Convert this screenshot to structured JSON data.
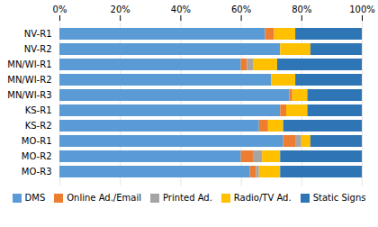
{
  "chart_data": {
    "type": "bar",
    "orientation": "horizontal",
    "stacked": true,
    "categories": [
      "NV-R1",
      "NV-R2",
      "MN/WI-R1",
      "MN/WI-R2",
      "MN/WI-R3",
      "KS-R1",
      "KS-R2",
      "MO-R1",
      "MO-R2",
      "MO-R3"
    ],
    "series": [
      {
        "name": "DMS",
        "color": "#5B9BD5",
        "values": [
          68,
          73,
          60,
          70,
          76,
          73,
          66,
          74,
          60,
          63
        ]
      },
      {
        "name": "Online Ad./Email",
        "color": "#ED7D31",
        "values": [
          3,
          0,
          2,
          0,
          1,
          2,
          3,
          4,
          4,
          2
        ]
      },
      {
        "name": "Printed Ad.",
        "color": "#A5A5A5",
        "values": [
          0,
          0,
          2,
          0,
          0,
          0,
          0,
          2,
          3,
          1
        ]
      },
      {
        "name": "Radio/TV Ad.",
        "color": "#FFC000",
        "values": [
          7,
          10,
          8,
          8,
          5,
          7,
          5,
          3,
          6,
          7
        ]
      },
      {
        "name": "Static Signs",
        "color": "#2E75B6",
        "values": [
          22,
          17,
          28,
          22,
          18,
          18,
          26,
          17,
          27,
          27
        ]
      }
    ],
    "xlim": [
      0,
      100
    ],
    "xticks": [
      {
        "value": 0,
        "label": "0%"
      },
      {
        "value": 20,
        "label": "20%"
      },
      {
        "value": 40,
        "label": "40%"
      },
      {
        "value": 60,
        "label": "60%"
      },
      {
        "value": 80,
        "label": "80%"
      },
      {
        "value": 100,
        "label": "100%"
      }
    ],
    "grid": true,
    "legend": "bottom"
  }
}
